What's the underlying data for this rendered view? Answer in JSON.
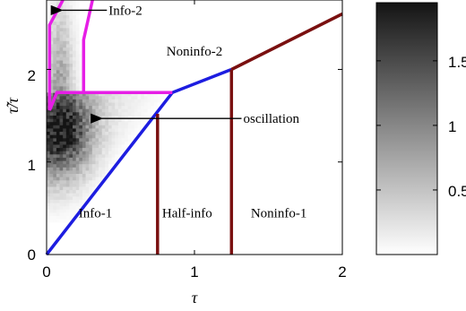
{
  "chart_data": {
    "type": "heatmap",
    "xlabel": "τ",
    "ylabel": "τ̃/τ",
    "xlim": [
      0,
      2
    ],
    "ylim": [
      0,
      2.75
    ],
    "x_ticks": [
      "0",
      "1",
      "2"
    ],
    "y_ticks": [
      "0",
      "1",
      "2"
    ],
    "colorbar": {
      "range": [
        0,
        1.95
      ],
      "ticks": [
        "0.5",
        "1",
        "1.5"
      ],
      "colormap": "gray-reversed"
    },
    "region_labels": [
      {
        "text": "Info-1",
        "x": 0.33,
        "y": 0.45
      },
      {
        "text": "Half-info",
        "x": 0.95,
        "y": 0.45
      },
      {
        "text": "Noninfo-1",
        "x": 1.57,
        "y": 0.45
      },
      {
        "text": "Noninfo-2",
        "x": 1.0,
        "y": 2.2
      }
    ],
    "annotations": [
      {
        "text": "Info-2",
        "x_text": 0.42,
        "y_text": 2.64,
        "x_tip": 0.05,
        "y_tip": 2.64
      },
      {
        "text": "oscillation",
        "x_text": 1.33,
        "y_text": 1.47,
        "x_tip": 0.32,
        "y_tip": 1.47
      }
    ],
    "boundaries": [
      {
        "name": "blue",
        "color": "#1d1de0",
        "points": [
          [
            0,
            0
          ],
          [
            0.85,
            1.75
          ],
          [
            1.25,
            2.0
          ]
        ]
      },
      {
        "name": "darkred-upper",
        "color": "#7a1010",
        "points": [
          [
            1.25,
            2.0
          ],
          [
            2.0,
            2.6
          ]
        ]
      },
      {
        "name": "darkred-left",
        "color": "#7a1010",
        "points": [
          [
            0.75,
            0
          ],
          [
            0.75,
            1.52
          ]
        ]
      },
      {
        "name": "darkred-right",
        "color": "#7a1010",
        "points": [
          [
            1.25,
            0
          ],
          [
            1.25,
            2.0
          ]
        ]
      },
      {
        "name": "magenta",
        "color": "#e61ee6",
        "points": [
          [
            0.11,
            2.75
          ],
          [
            0.02,
            2.48
          ],
          [
            0.02,
            1.56
          ],
          [
            0.07,
            1.75
          ],
          [
            0.25,
            1.75
          ],
          [
            0.85,
            1.75
          ],
          [
            0.25,
            1.75
          ],
          [
            0.25,
            2.32
          ],
          [
            0.31,
            2.75
          ]
        ]
      }
    ]
  }
}
